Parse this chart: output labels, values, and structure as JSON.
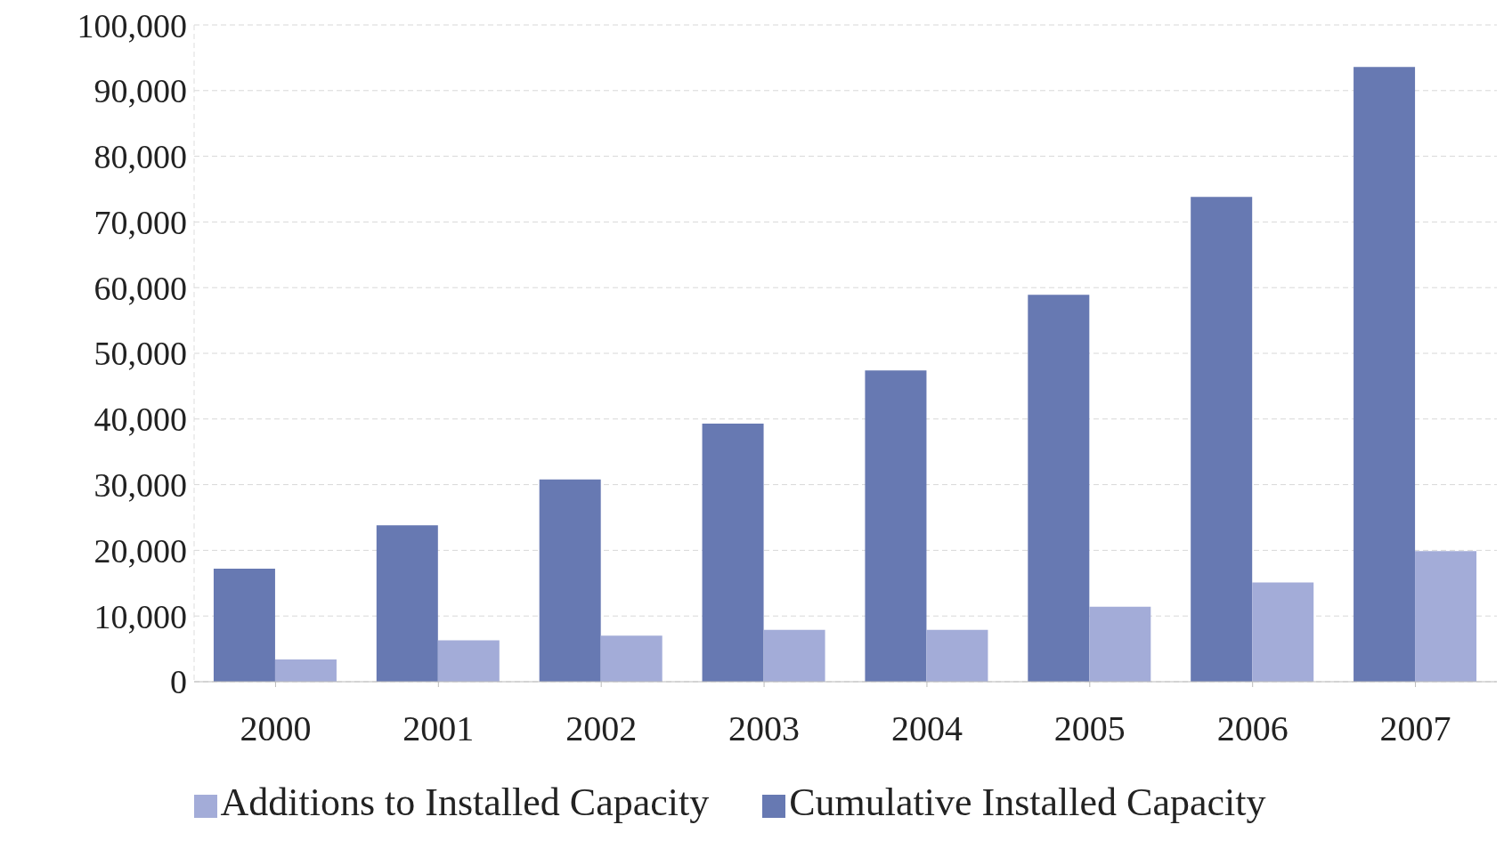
{
  "chart_data": {
    "type": "bar",
    "categories": [
      "2000",
      "2001",
      "2002",
      "2003",
      "2004",
      "2005",
      "2006",
      "2007"
    ],
    "series": [
      {
        "name": "Cumulative Installed Capacity",
        "color": "#6779b2",
        "values": [
          17200,
          23800,
          30800,
          39300,
          47400,
          58900,
          73800,
          93600
        ]
      },
      {
        "name": "Additions to Installed Capacity",
        "color": "#a3acd8",
        "values": [
          3400,
          6300,
          7000,
          7900,
          7900,
          11400,
          15100,
          19900
        ]
      }
    ],
    "ylim": [
      0,
      100000
    ],
    "yticks": [
      {
        "value": 0,
        "label": "0"
      },
      {
        "value": 10000,
        "label": "10,000"
      },
      {
        "value": 20000,
        "label": "20,000"
      },
      {
        "value": 30000,
        "label": "30,000"
      },
      {
        "value": 40000,
        "label": "40,000"
      },
      {
        "value": 50000,
        "label": "50,000"
      },
      {
        "value": 60000,
        "label": "60,000"
      },
      {
        "value": 70000,
        "label": "70,000"
      },
      {
        "value": 80000,
        "label": "80,000"
      },
      {
        "value": 90000,
        "label": "90,000"
      },
      {
        "value": 100000,
        "label": "100,000"
      }
    ],
    "grid": "y",
    "legend": "bottom"
  }
}
